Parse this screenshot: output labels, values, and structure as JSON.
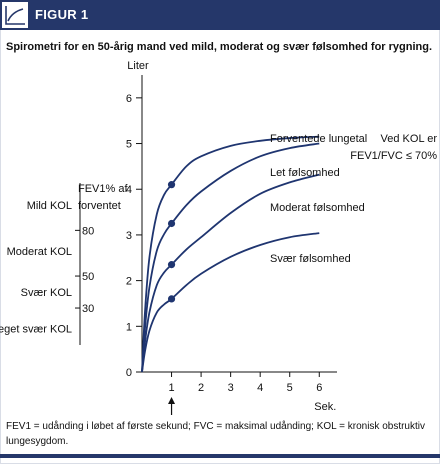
{
  "header": {
    "title": "FIGUR 1",
    "icon": "line-chart-icon",
    "color": "#25376a"
  },
  "caption": "Spirometri for en 50-årig mand ved mild, moderat og svær følsomhed for rygning.",
  "footnote": "FEV1 = udånding i løbet af første sekund;  FVC = maksimal udånding;  KOL = kronisk obstruktiv lungesygdom.",
  "chart_data": {
    "type": "line",
    "ylabel": "Liter",
    "xlabel": "Sek.",
    "xlim": [
      0,
      6.6
    ],
    "ylim": [
      0,
      6.5
    ],
    "x_ticks": [
      1,
      2,
      3,
      4,
      5,
      6
    ],
    "y_ticks": [
      0,
      1,
      2,
      3,
      4,
      5,
      6
    ],
    "grid": false,
    "line_color": "#1f3570",
    "series": [
      {
        "name": "Forventede lungetal",
        "x": [
          0,
          0.1,
          0.25,
          0.5,
          0.75,
          1,
          1.5,
          2,
          3,
          4,
          5,
          6
        ],
        "y": [
          0,
          1.3,
          2.5,
          3.45,
          3.88,
          4.1,
          4.5,
          4.72,
          4.95,
          5.06,
          5.12,
          5.15
        ]
      },
      {
        "name": "Let følsomhed",
        "x": [
          0,
          0.1,
          0.25,
          0.5,
          0.75,
          1,
          1.5,
          2,
          3,
          4,
          5,
          6
        ],
        "y": [
          0,
          0.95,
          1.85,
          2.65,
          3.02,
          3.25,
          3.65,
          3.95,
          4.4,
          4.72,
          4.9,
          5.0
        ]
      },
      {
        "name": "Moderat følsomhed",
        "x": [
          0,
          0.1,
          0.25,
          0.5,
          0.75,
          1,
          1.5,
          2,
          3,
          4,
          5,
          6
        ],
        "y": [
          0,
          0.65,
          1.3,
          1.9,
          2.18,
          2.35,
          2.68,
          2.95,
          3.48,
          3.9,
          4.15,
          4.32
        ]
      },
      {
        "name": "Svær følsomhed",
        "x": [
          0,
          0.1,
          0.25,
          0.5,
          0.75,
          1,
          1.5,
          2,
          3,
          4,
          5,
          6
        ],
        "y": [
          0,
          0.45,
          0.9,
          1.3,
          1.48,
          1.6,
          1.9,
          2.15,
          2.52,
          2.78,
          2.95,
          3.04
        ]
      }
    ],
    "markers": [
      {
        "x": 1,
        "y": 4.1
      },
      {
        "x": 1,
        "y": 3.25
      },
      {
        "x": 1,
        "y": 2.35
      },
      {
        "x": 1,
        "y": 1.6
      }
    ],
    "arrow_at_x": 1,
    "note": [
      "Ved KOL er",
      "FEV1/FVC ≤ 70%"
    ],
    "fev_scale": {
      "title": [
        "FEV1% af",
        "forventet"
      ],
      "ticks": [
        {
          "label": "80",
          "y": 3.1
        },
        {
          "label": "50",
          "y": 2.1
        },
        {
          "label": "30",
          "y": 1.4
        }
      ],
      "categories": [
        {
          "label": "Mild KOL",
          "y": 3.65
        },
        {
          "label": "Moderat KOL",
          "y": 2.65
        },
        {
          "label": "Svær KOL",
          "y": 1.75
        },
        {
          "label": "Meget svær KOL",
          "y": 0.95
        }
      ]
    }
  }
}
